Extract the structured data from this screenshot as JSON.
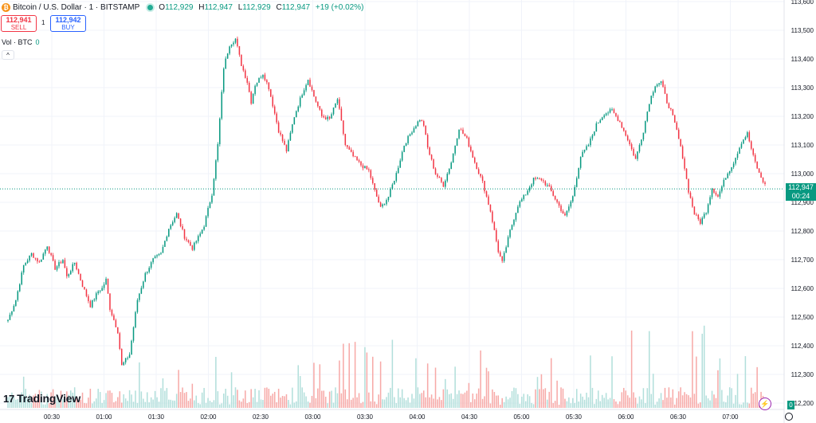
{
  "header": {
    "symbol": "Bitcoin / U.S. Dollar · 1 · BITSTAMP",
    "o_label": "O",
    "o": "112,929",
    "h_label": "H",
    "h": "112,947",
    "l_label": "L",
    "l": "112,929",
    "c_label": "C",
    "c": "112,947",
    "change": "+19 (+0.02%)",
    "logo_letter": "₿"
  },
  "trade": {
    "sell_price": "112,941",
    "sell_label": "SELL",
    "spread": "1",
    "buy_price": "112,942",
    "buy_label": "BUY"
  },
  "volume_legend": {
    "label": "Vol · BTC",
    "value": "0"
  },
  "collapse_icon": "^",
  "brand": {
    "mark": "17",
    "name": "TradingView"
  },
  "last_price": {
    "value": "112,947",
    "countdown": "00:24"
  },
  "volume_tag": "0",
  "colors": {
    "up": "#089981",
    "down": "#f23645",
    "vol_up": "#b2dfdb",
    "vol_down": "#f7a9a7",
    "grid": "#f0f3fa"
  },
  "chart_data": {
    "type": "candlestick",
    "price_ticks": [
      "113,600",
      "113,500",
      "113,400",
      "113,300",
      "113,200",
      "113,100",
      "113,000",
      "112,900",
      "112,800",
      "112,700",
      "112,600",
      "112,500",
      "112,400",
      "112,300",
      "112,200"
    ],
    "y_range": [
      112180,
      113620
    ],
    "time_ticks": [
      "00:30",
      "01:00",
      "01:30",
      "02:00",
      "02:30",
      "03:00",
      "03:30",
      "04:00",
      "04:30",
      "05:00",
      "05:30",
      "06:00",
      "06:30",
      "07:00"
    ],
    "interval": "1 minute",
    "keypoints": [
      [
        0,
        112490
      ],
      [
        4,
        112560
      ],
      [
        8,
        112680
      ],
      [
        12,
        112720
      ],
      [
        16,
        112690
      ],
      [
        20,
        112750
      ],
      [
        24,
        112670
      ],
      [
        28,
        112700
      ],
      [
        30,
        112640
      ],
      [
        34,
        112690
      ],
      [
        38,
        112610
      ],
      [
        42,
        112540
      ],
      [
        46,
        112590
      ],
      [
        48,
        112600
      ],
      [
        50,
        112630
      ],
      [
        52,
        112530
      ],
      [
        56,
        112450
      ],
      [
        58,
        112330
      ],
      [
        62,
        112370
      ],
      [
        66,
        112560
      ],
      [
        70,
        112650
      ],
      [
        74,
        112700
      ],
      [
        78,
        112720
      ],
      [
        82,
        112810
      ],
      [
        86,
        112860
      ],
      [
        90,
        112780
      ],
      [
        94,
        112740
      ],
      [
        98,
        112790
      ],
      [
        100,
        112820
      ],
      [
        104,
        112930
      ],
      [
        107,
        113100
      ],
      [
        110,
        113370
      ],
      [
        113,
        113450
      ],
      [
        116,
        113470
      ],
      [
        119,
        113380
      ],
      [
        122,
        113320
      ],
      [
        124,
        113250
      ],
      [
        126,
        113310
      ],
      [
        130,
        113350
      ],
      [
        133,
        113300
      ],
      [
        136,
        113210
      ],
      [
        138,
        113150
      ],
      [
        142,
        113080
      ],
      [
        146,
        113200
      ],
      [
        150,
        113280
      ],
      [
        153,
        113330
      ],
      [
        156,
        113270
      ],
      [
        160,
        113200
      ],
      [
        164,
        113190
      ],
      [
        168,
        113260
      ],
      [
        172,
        113100
      ],
      [
        176,
        113060
      ],
      [
        180,
        113030
      ],
      [
        184,
        113010
      ],
      [
        187,
        112940
      ],
      [
        190,
        112880
      ],
      [
        194,
        112920
      ],
      [
        198,
        113000
      ],
      [
        202,
        113100
      ],
      [
        206,
        113150
      ],
      [
        210,
        113190
      ],
      [
        212,
        113170
      ],
      [
        214,
        113090
      ],
      [
        218,
        113000
      ],
      [
        222,
        112960
      ],
      [
        226,
        113040
      ],
      [
        230,
        113160
      ],
      [
        234,
        113120
      ],
      [
        238,
        113040
      ],
      [
        242,
        112970
      ],
      [
        246,
        112870
      ],
      [
        250,
        112730
      ],
      [
        252,
        112690
      ],
      [
        256,
        112800
      ],
      [
        260,
        112890
      ],
      [
        264,
        112930
      ],
      [
        268,
        112980
      ],
      [
        272,
        112980
      ],
      [
        276,
        112950
      ],
      [
        280,
        112900
      ],
      [
        284,
        112850
      ],
      [
        288,
        112920
      ],
      [
        292,
        113060
      ],
      [
        296,
        113100
      ],
      [
        300,
        113170
      ],
      [
        304,
        113210
      ],
      [
        308,
        113220
      ],
      [
        312,
        113180
      ],
      [
        316,
        113120
      ],
      [
        320,
        113050
      ],
      [
        324,
        113150
      ],
      [
        327,
        113250
      ],
      [
        330,
        113310
      ],
      [
        333,
        113320
      ],
      [
        336,
        113250
      ],
      [
        338,
        113220
      ],
      [
        341,
        113150
      ],
      [
        344,
        113060
      ],
      [
        347,
        112940
      ],
      [
        350,
        112860
      ],
      [
        353,
        112830
      ],
      [
        356,
        112870
      ],
      [
        359,
        112950
      ],
      [
        362,
        112920
      ],
      [
        366,
        112990
      ],
      [
        370,
        113040
      ],
      [
        374,
        113110
      ],
      [
        377,
        113140
      ],
      [
        380,
        113060
      ],
      [
        383,
        113000
      ],
      [
        386,
        112960
      ]
    ],
    "volume_note": "per-minute BTC volume histogram, bars mostly small with spikes near 03:30-03:55, 05:25 and 06:35"
  }
}
